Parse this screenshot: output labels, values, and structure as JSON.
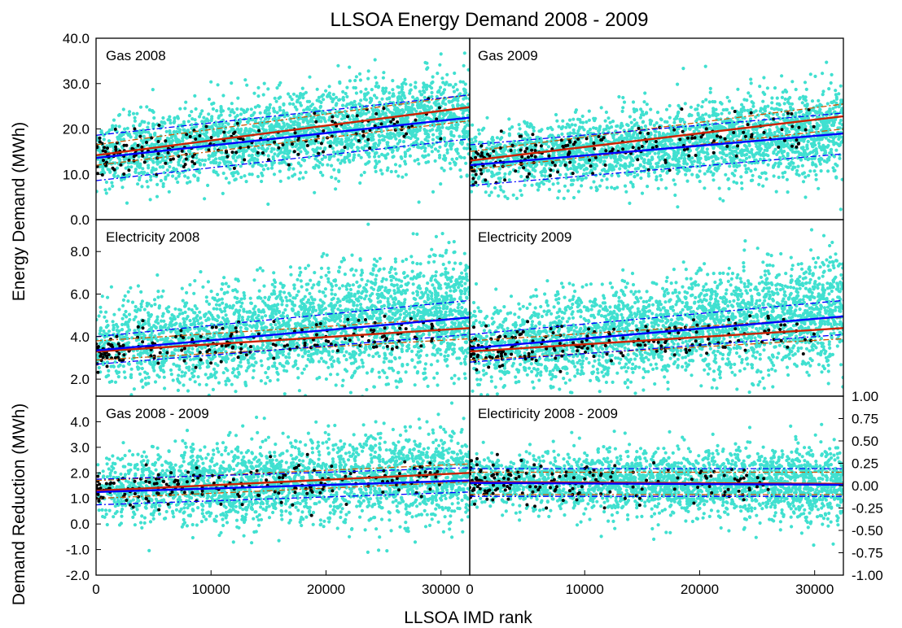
{
  "figure": {
    "title": "LLSOA Energy Demand 2008 - 2009",
    "xlabel": "LLSOA IMD rank",
    "ylabel_top": "Energy Demand (MWh)",
    "ylabel_bottom": "Demand Reduction (MWh)"
  },
  "colors": {
    "scatter_all": "#40e0d0",
    "scatter_sample": "#000000",
    "fit_blue": "#0000ff",
    "fit_red": "#cc2200",
    "band_blue": "#0000ff",
    "band_red": "#cc5500"
  },
  "chart_data": [
    {
      "type": "scatter",
      "panel": "gas-2008",
      "label": "Gas 2008",
      "xlim": [
        0,
        32500
      ],
      "ylim": [
        0,
        40
      ],
      "xticks": [],
      "yticks": [
        "0.0",
        "10.0",
        "20.0",
        "30.0",
        "40.0"
      ],
      "cloud": {
        "mean_start": 14.5,
        "mean_end": 23,
        "spread": 4.3,
        "n": 2600
      },
      "sample": {
        "mean_start": 13.8,
        "mean_end": 22,
        "spread": 2.5,
        "n": 190
      },
      "fit_blue": {
        "x": [
          0,
          32500
        ],
        "y": [
          13.6,
          22.5
        ]
      },
      "fit_red": {
        "x": [
          0,
          32500
        ],
        "y": [
          14.2,
          24.8
        ]
      },
      "band_blue": {
        "upper": {
          "x": [
            0,
            32500
          ],
          "y": [
            18.6,
            27.5
          ]
        },
        "lower": {
          "x": [
            0,
            32500
          ],
          "y": [
            8.6,
            17.8
          ]
        }
      },
      "band_red": {
        "upper": {
          "x": [
            0,
            32500
          ],
          "y": [
            16.5,
            27.5
          ]
        },
        "lower": {
          "x": [
            0,
            32500
          ],
          "y": [
            12.0,
            21.8
          ]
        }
      }
    },
    {
      "type": "scatter",
      "panel": "gas-2009",
      "label": "Gas 2009",
      "xlim": [
        0,
        32500
      ],
      "ylim": [
        0,
        40
      ],
      "xticks": [],
      "yticks": [],
      "cloud": {
        "mean_start": 13,
        "mean_end": 20,
        "spread": 4.0,
        "n": 2600
      },
      "sample": {
        "mean_start": 12.5,
        "mean_end": 20,
        "spread": 2.5,
        "n": 190
      },
      "fit_blue": {
        "x": [
          0,
          32500
        ],
        "y": [
          12.0,
          19.0
        ]
      },
      "fit_red": {
        "x": [
          0,
          32500
        ],
        "y": [
          13.0,
          22.8
        ]
      },
      "band_blue": {
        "upper": {
          "x": [
            0,
            32500
          ],
          "y": [
            16.5,
            23.5
          ]
        },
        "lower": {
          "x": [
            0,
            32500
          ],
          "y": [
            7.5,
            14.5
          ]
        }
      },
      "band_red": {
        "upper": {
          "x": [
            0,
            32500
          ],
          "y": [
            15.0,
            25.5
          ]
        },
        "lower": {
          "x": [
            0,
            32500
          ],
          "y": [
            11.0,
            20.0
          ]
        }
      }
    },
    {
      "type": "scatter",
      "panel": "electricity-2008",
      "label": "Electricity 2008",
      "xlim": [
        0,
        32500
      ],
      "ylim": [
        1.2,
        9.5
      ],
      "xticks": [],
      "yticks": [
        "2.0",
        "4.0",
        "6.0",
        "8.0"
      ],
      "cloud": {
        "mean_start": 3.5,
        "mean_end": 5.2,
        "spread": 1.15,
        "n": 2800
      },
      "sample": {
        "mean_start": 3.3,
        "mean_end": 4.3,
        "spread": 0.45,
        "n": 190
      },
      "fit_blue": {
        "x": [
          0,
          32500
        ],
        "y": [
          3.35,
          4.9
        ]
      },
      "fit_red": {
        "x": [
          0,
          32500
        ],
        "y": [
          3.3,
          4.4
        ]
      },
      "band_blue": {
        "upper": {
          "x": [
            0,
            32500
          ],
          "y": [
            4.0,
            5.7
          ]
        },
        "lower": {
          "x": [
            0,
            32500
          ],
          "y": [
            2.7,
            4.1
          ]
        }
      },
      "band_red": {
        "upper": {
          "x": [
            0,
            32500
          ],
          "y": [
            3.8,
            4.9
          ]
        },
        "lower": {
          "x": [
            0,
            32500
          ],
          "y": [
            2.9,
            3.9
          ]
        }
      }
    },
    {
      "type": "scatter",
      "panel": "electricity-2009",
      "label": "Electricity 2009",
      "xlim": [
        0,
        32500
      ],
      "ylim": [
        1.2,
        9.5
      ],
      "xticks": [],
      "yticks": [],
      "cloud": {
        "mean_start": 3.5,
        "mean_end": 5.2,
        "spread": 1.15,
        "n": 2800
      },
      "sample": {
        "mean_start": 3.3,
        "mean_end": 4.3,
        "spread": 0.45,
        "n": 190
      },
      "fit_blue": {
        "x": [
          0,
          32500
        ],
        "y": [
          3.45,
          4.95
        ]
      },
      "fit_red": {
        "x": [
          0,
          32500
        ],
        "y": [
          3.3,
          4.4
        ]
      },
      "band_blue": {
        "upper": {
          "x": [
            0,
            32500
          ],
          "y": [
            4.1,
            5.7
          ]
        },
        "lower": {
          "x": [
            0,
            32500
          ],
          "y": [
            2.8,
            4.1
          ]
        }
      },
      "band_red": {
        "upper": {
          "x": [
            0,
            32500
          ],
          "y": [
            3.8,
            4.9
          ]
        },
        "lower": {
          "x": [
            0,
            32500
          ],
          "y": [
            2.9,
            3.9
          ]
        }
      }
    },
    {
      "type": "scatter",
      "panel": "gas-2008-2009",
      "label": "Gas 2008 - 2009",
      "xlim": [
        0,
        32500
      ],
      "ylim": [
        -2.0,
        5.0
      ],
      "xticks": [
        "0",
        "10000",
        "20000",
        "30000"
      ],
      "yticks": [
        "-2.0",
        "-1.0",
        "0.0",
        "1.0",
        "2.0",
        "3.0",
        "4.0"
      ],
      "cloud": {
        "mean_start": 1.35,
        "mean_end": 1.9,
        "spread": 0.75,
        "n": 2500
      },
      "sample": {
        "mean_start": 1.3,
        "mean_end": 1.9,
        "spread": 0.4,
        "n": 190
      },
      "fit_blue": {
        "x": [
          0,
          32500
        ],
        "y": [
          1.25,
          1.7
        ]
      },
      "fit_red": {
        "x": [
          0,
          32500
        ],
        "y": [
          1.3,
          2.0
        ]
      },
      "band_blue": {
        "upper": {
          "x": [
            0,
            32500
          ],
          "y": [
            1.75,
            2.2
          ]
        },
        "lower": {
          "x": [
            0,
            32500
          ],
          "y": [
            0.75,
            1.25
          ]
        }
      },
      "band_red": {
        "upper": {
          "x": [
            0,
            32500
          ],
          "y": [
            1.7,
            2.35
          ]
        },
        "lower": {
          "x": [
            0,
            32500
          ],
          "y": [
            1.0,
            1.65
          ]
        }
      }
    },
    {
      "type": "scatter",
      "panel": "electricity-2008-2009",
      "label": "Electiricity 2008 - 2009",
      "xlim": [
        0,
        32500
      ],
      "ylim": [
        -1.0,
        1.0
      ],
      "xticks": [
        "0",
        "10000",
        "20000",
        "30000"
      ],
      "yticks_right": [
        "-1.00",
        "-0.75",
        "-0.50",
        "-0.25",
        "0.00",
        "0.25",
        "0.50",
        "0.75",
        "1.00"
      ],
      "cloud": {
        "mean_start": 0.05,
        "mean_end": 0.02,
        "spread": 0.17,
        "n": 2500
      },
      "sample": {
        "mean_start": 0.05,
        "mean_end": 0.02,
        "spread": 0.12,
        "n": 170
      },
      "fit_blue": {
        "x": [
          0,
          32500
        ],
        "y": [
          0.03,
          0.01
        ]
      },
      "fit_red": {
        "x": [
          0,
          32500
        ],
        "y": [
          0.04,
          0.02
        ]
      },
      "band_blue": {
        "upper": {
          "x": [
            0,
            32500
          ],
          "y": [
            0.19,
            0.19
          ]
        },
        "lower": {
          "x": [
            0,
            32500
          ],
          "y": [
            -0.12,
            -0.12
          ]
        }
      },
      "band_red": {
        "upper": {
          "x": [
            0,
            32500
          ],
          "y": [
            0.15,
            0.15
          ]
        },
        "lower": {
          "x": [
            0,
            32500
          ],
          "y": [
            -0.1,
            -0.1
          ]
        }
      }
    }
  ]
}
